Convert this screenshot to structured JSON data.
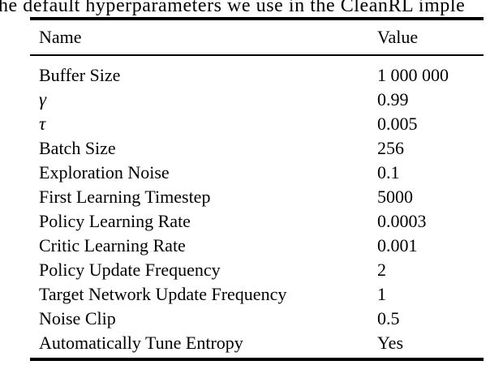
{
  "caption": {
    "visible_text": "he default hyperparameters we use in the CleanRL imple"
  },
  "table": {
    "columns": [
      "Name",
      "Value"
    ],
    "rows": [
      {
        "name": "Buffer Size",
        "value": "1 000 000",
        "math": false
      },
      {
        "name": "γ",
        "value": "0.99",
        "math": true
      },
      {
        "name": "τ",
        "value": "0.005",
        "math": true
      },
      {
        "name": "Batch Size",
        "value": "256",
        "math": false
      },
      {
        "name": "Exploration Noise",
        "value": "0.1",
        "math": false
      },
      {
        "name": "First Learning Timestep",
        "value": "5000",
        "math": false
      },
      {
        "name": "Policy Learning Rate",
        "value": "0.0003",
        "math": false
      },
      {
        "name": "Critic Learning Rate",
        "value": "0.001",
        "math": false
      },
      {
        "name": "Policy Update Frequency",
        "value": "2",
        "math": false
      },
      {
        "name": "Target Network Update Frequency",
        "value": "1",
        "math": false
      },
      {
        "name": "Noise Clip",
        "value": "0.5",
        "math": false
      },
      {
        "name": "Automatically Tune Entropy",
        "value": "Yes",
        "math": false
      }
    ]
  },
  "colors": {
    "text": "#000000",
    "background": "#ffffff",
    "rule": "#000000"
  }
}
